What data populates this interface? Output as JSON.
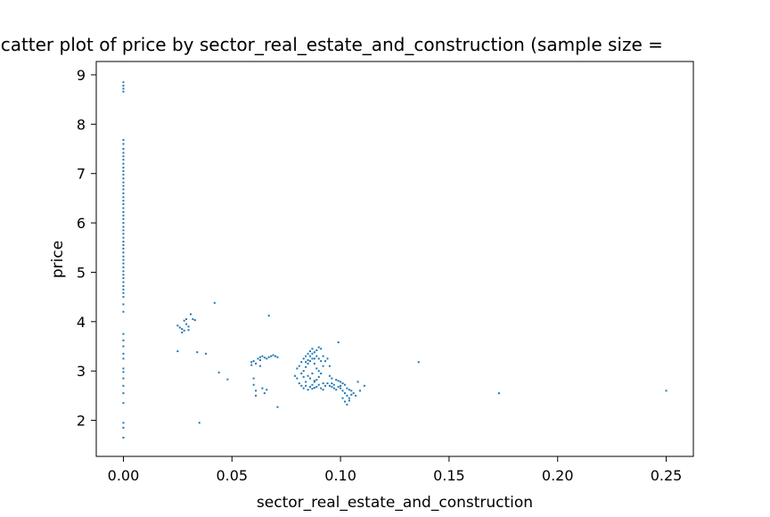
{
  "chart_data": {
    "type": "scatter",
    "title": "Scatter plot of price by sector_real_estate_and_construction (sample size = ",
    "xlabel": "sector_real_estate_and_construction",
    "ylabel": "price",
    "xlim": [
      -0.0125,
      0.2625
    ],
    "ylim": [
      1.27,
      9.27
    ],
    "xticks": [
      0.0,
      0.05,
      0.1,
      0.15,
      0.2,
      0.25
    ],
    "xtick_labels": [
      "0.00",
      "0.05",
      "0.10",
      "0.15",
      "0.20",
      "0.25"
    ],
    "yticks": [
      2,
      3,
      4,
      5,
      6,
      7,
      8,
      9
    ],
    "ytick_labels": [
      "2",
      "3",
      "4",
      "5",
      "6",
      "7",
      "8",
      "9"
    ],
    "grid": false,
    "color": "#1f77b4",
    "series": [
      {
        "points": [
          [
            0.0,
            8.85
          ],
          [
            0.0,
            8.78
          ],
          [
            0.0,
            8.72
          ],
          [
            0.0,
            8.66
          ],
          [
            0.0,
            7.68
          ],
          [
            0.0,
            7.6
          ],
          [
            0.0,
            7.5
          ],
          [
            0.0,
            7.42
          ],
          [
            0.0,
            7.35
          ],
          [
            0.0,
            7.28
          ],
          [
            0.0,
            7.2
          ],
          [
            0.0,
            7.12
          ],
          [
            0.0,
            7.05
          ],
          [
            0.0,
            6.98
          ],
          [
            0.0,
            6.9
          ],
          [
            0.0,
            6.82
          ],
          [
            0.0,
            6.75
          ],
          [
            0.0,
            6.68
          ],
          [
            0.0,
            6.6
          ],
          [
            0.0,
            6.52
          ],
          [
            0.0,
            6.45
          ],
          [
            0.0,
            6.38
          ],
          [
            0.0,
            6.3
          ],
          [
            0.0,
            6.22
          ],
          [
            0.0,
            6.15
          ],
          [
            0.0,
            6.08
          ],
          [
            0.0,
            6.0
          ],
          [
            0.0,
            5.92
          ],
          [
            0.0,
            5.85
          ],
          [
            0.0,
            5.78
          ],
          [
            0.0,
            5.7
          ],
          [
            0.0,
            5.62
          ],
          [
            0.0,
            5.55
          ],
          [
            0.0,
            5.48
          ],
          [
            0.0,
            5.4
          ],
          [
            0.0,
            5.32
          ],
          [
            0.0,
            5.25
          ],
          [
            0.0,
            5.18
          ],
          [
            0.0,
            5.1
          ],
          [
            0.0,
            5.02
          ],
          [
            0.0,
            4.95
          ],
          [
            0.0,
            4.88
          ],
          [
            0.0,
            4.8
          ],
          [
            0.0,
            4.72
          ],
          [
            0.0,
            4.65
          ],
          [
            0.0,
            4.58
          ],
          [
            0.0,
            4.5
          ],
          [
            0.0,
            4.35
          ],
          [
            0.0,
            4.2
          ],
          [
            0.0,
            3.75
          ],
          [
            0.0,
            3.62
          ],
          [
            0.0,
            3.5
          ],
          [
            0.0,
            3.35
          ],
          [
            0.0,
            3.25
          ],
          [
            0.0,
            3.05
          ],
          [
            0.0,
            2.98
          ],
          [
            0.0,
            2.85
          ],
          [
            0.0,
            2.7
          ],
          [
            0.0,
            2.55
          ],
          [
            0.0,
            2.35
          ],
          [
            0.0,
            1.95
          ],
          [
            0.0,
            1.85
          ],
          [
            0.0,
            1.65
          ],
          [
            0.025,
            3.92
          ],
          [
            0.026,
            3.88
          ],
          [
            0.027,
            3.85
          ],
          [
            0.028,
            3.82
          ],
          [
            0.029,
            3.95
          ],
          [
            0.03,
            3.9
          ],
          [
            0.027,
            3.78
          ],
          [
            0.028,
            4.02
          ],
          [
            0.029,
            4.05
          ],
          [
            0.031,
            4.15
          ],
          [
            0.032,
            4.05
          ],
          [
            0.033,
            4.03
          ],
          [
            0.03,
            3.83
          ],
          [
            0.025,
            3.4
          ],
          [
            0.034,
            3.38
          ],
          [
            0.038,
            3.35
          ],
          [
            0.042,
            4.38
          ],
          [
            0.044,
            2.97
          ],
          [
            0.048,
            2.83
          ],
          [
            0.035,
            1.95
          ],
          [
            0.067,
            4.12
          ],
          [
            0.071,
            2.27
          ],
          [
            0.059,
            3.18
          ],
          [
            0.059,
            3.12
          ],
          [
            0.06,
            3.2
          ],
          [
            0.061,
            3.15
          ],
          [
            0.06,
            2.85
          ],
          [
            0.06,
            2.72
          ],
          [
            0.061,
            2.6
          ],
          [
            0.061,
            2.5
          ],
          [
            0.062,
            3.25
          ],
          [
            0.063,
            3.28
          ],
          [
            0.064,
            3.3
          ],
          [
            0.065,
            3.27
          ],
          [
            0.066,
            3.25
          ],
          [
            0.067,
            3.28
          ],
          [
            0.068,
            3.3
          ],
          [
            0.069,
            3.32
          ],
          [
            0.07,
            3.3
          ],
          [
            0.071,
            3.28
          ],
          [
            0.063,
            3.1
          ],
          [
            0.064,
            2.65
          ],
          [
            0.065,
            2.55
          ],
          [
            0.066,
            2.62
          ],
          [
            0.063,
            3.22
          ],
          [
            0.079,
            2.9
          ],
          [
            0.08,
            2.85
          ],
          [
            0.081,
            2.75
          ],
          [
            0.082,
            2.7
          ],
          [
            0.083,
            2.65
          ],
          [
            0.084,
            2.7
          ],
          [
            0.085,
            2.62
          ],
          [
            0.086,
            2.68
          ],
          [
            0.087,
            2.72
          ],
          [
            0.088,
            2.78
          ],
          [
            0.089,
            2.82
          ],
          [
            0.09,
            2.88
          ],
          [
            0.091,
            2.65
          ],
          [
            0.092,
            2.62
          ],
          [
            0.08,
            3.05
          ],
          [
            0.081,
            3.1
          ],
          [
            0.082,
            3.18
          ],
          [
            0.083,
            3.25
          ],
          [
            0.084,
            3.3
          ],
          [
            0.085,
            3.35
          ],
          [
            0.086,
            3.4
          ],
          [
            0.087,
            3.45
          ],
          [
            0.088,
            3.38
          ],
          [
            0.089,
            3.3
          ],
          [
            0.09,
            3.25
          ],
          [
            0.091,
            3.2
          ],
          [
            0.092,
            3.1
          ],
          [
            0.082,
            2.95
          ],
          [
            0.083,
            3.0
          ],
          [
            0.084,
            3.08
          ],
          [
            0.085,
            3.15
          ],
          [
            0.086,
            3.2
          ],
          [
            0.087,
            3.25
          ],
          [
            0.088,
            3.15
          ],
          [
            0.089,
            3.05
          ],
          [
            0.09,
            3.0
          ],
          [
            0.085,
            2.9
          ],
          [
            0.086,
            2.85
          ],
          [
            0.087,
            2.95
          ],
          [
            0.088,
            2.8
          ],
          [
            0.084,
            2.78
          ],
          [
            0.083,
            2.88
          ],
          [
            0.086,
            3.3
          ],
          [
            0.087,
            3.35
          ],
          [
            0.088,
            3.25
          ],
          [
            0.085,
            3.22
          ],
          [
            0.084,
            3.18
          ],
          [
            0.089,
            3.42
          ],
          [
            0.09,
            3.48
          ],
          [
            0.091,
            3.45
          ],
          [
            0.092,
            3.3
          ],
          [
            0.093,
            3.2
          ],
          [
            0.094,
            3.25
          ],
          [
            0.095,
            3.1
          ],
          [
            0.095,
            2.9
          ],
          [
            0.096,
            2.85
          ],
          [
            0.094,
            2.75
          ],
          [
            0.093,
            2.7
          ],
          [
            0.092,
            2.75
          ],
          [
            0.091,
            2.95
          ],
          [
            0.09,
            2.72
          ],
          [
            0.089,
            2.68
          ],
          [
            0.088,
            2.66
          ],
          [
            0.087,
            2.64
          ],
          [
            0.096,
            2.68
          ],
          [
            0.097,
            2.65
          ],
          [
            0.098,
            2.62
          ],
          [
            0.099,
            2.68
          ],
          [
            0.1,
            2.65
          ],
          [
            0.101,
            2.6
          ],
          [
            0.102,
            2.55
          ],
          [
            0.103,
            2.5
          ],
          [
            0.104,
            2.45
          ],
          [
            0.105,
            2.52
          ],
          [
            0.106,
            2.55
          ],
          [
            0.107,
            2.5
          ],
          [
            0.101,
            2.45
          ],
          [
            0.102,
            2.38
          ],
          [
            0.103,
            2.32
          ],
          [
            0.104,
            2.4
          ],
          [
            0.098,
            2.82
          ],
          [
            0.099,
            2.8
          ],
          [
            0.1,
            2.78
          ],
          [
            0.101,
            2.75
          ],
          [
            0.102,
            2.72
          ],
          [
            0.103,
            2.65
          ],
          [
            0.104,
            2.62
          ],
          [
            0.105,
            2.6
          ],
          [
            0.1,
            2.7
          ],
          [
            0.097,
            2.72
          ],
          [
            0.096,
            2.75
          ],
          [
            0.095,
            2.7
          ],
          [
            0.099,
            3.58
          ],
          [
            0.108,
            2.78
          ],
          [
            0.111,
            2.7
          ],
          [
            0.109,
            2.6
          ],
          [
            0.136,
            3.18
          ],
          [
            0.173,
            2.55
          ],
          [
            0.25,
            2.6
          ]
        ]
      }
    ]
  }
}
